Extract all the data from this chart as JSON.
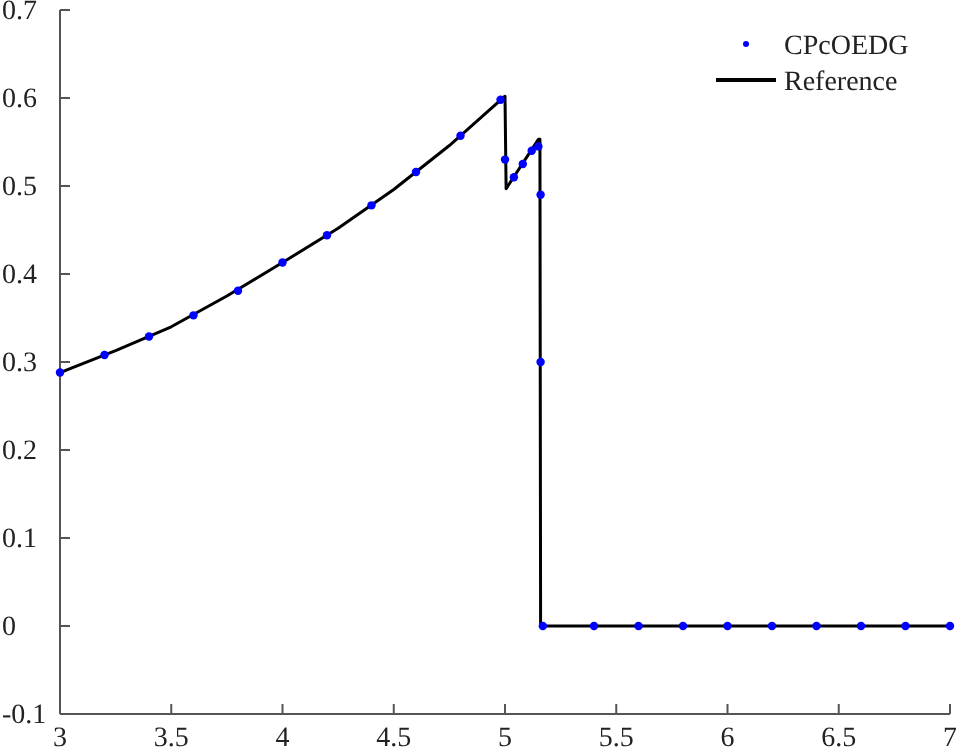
{
  "chart_data": {
    "type": "line",
    "xlim": [
      3,
      7
    ],
    "ylim": [
      -0.1,
      0.7
    ],
    "xticks": [
      3,
      3.5,
      4,
      4.5,
      5,
      5.5,
      6,
      6.5,
      7
    ],
    "yticks": [
      -0.1,
      0,
      0.1,
      0.2,
      0.3,
      0.4,
      0.5,
      0.6,
      0.7
    ],
    "grid": false,
    "legend": "top right",
    "series": [
      {
        "name": "Reference",
        "color": "#000000",
        "line_style": "solid",
        "x": [
          3,
          3.25,
          3.5,
          3.75,
          4,
          4.25,
          4.5,
          4.75,
          5,
          5.005,
          5.15,
          5.157,
          5.16,
          7
        ],
        "values": [
          0.288,
          0.313,
          0.34,
          0.375,
          0.413,
          0.452,
          0.496,
          0.546,
          0.602,
          0.497,
          0.553,
          0.553,
          0,
          0
        ]
      },
      {
        "name": "CPcOEDG",
        "type": "scatter",
        "color": "#0000ff",
        "marker": "circle",
        "x": [
          3,
          3.2,
          3.4,
          3.6,
          3.8,
          4,
          4.2,
          4.4,
          4.6,
          4.8,
          4.98,
          5.0,
          5.04,
          5.08,
          5.12,
          5.15,
          5.16,
          5.16,
          5.17,
          5.4,
          5.6,
          5.8,
          6,
          6.2,
          6.4,
          6.6,
          6.8,
          7
        ],
        "values": [
          0.288,
          0.308,
          0.329,
          0.353,
          0.381,
          0.413,
          0.444,
          0.478,
          0.516,
          0.557,
          0.598,
          0.53,
          0.51,
          0.525,
          0.54,
          0.545,
          0.49,
          0.3,
          0,
          0,
          0,
          0,
          0,
          0,
          0,
          0,
          0,
          0
        ]
      }
    ]
  }
}
